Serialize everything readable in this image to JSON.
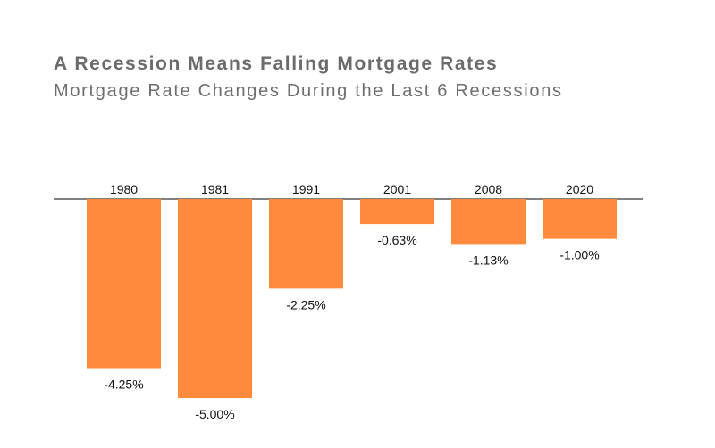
{
  "chart_data": {
    "type": "bar",
    "title": "A Recession Means Falling Mortgage Rates",
    "subtitle": "Mortgage Rate Changes During the Last 6 Recessions",
    "categories": [
      "1980",
      "1981",
      "1991",
      "2001",
      "2008",
      "2020"
    ],
    "values": [
      -4.25,
      -5.0,
      -2.25,
      -0.63,
      -1.13,
      -1.0
    ],
    "value_labels": [
      "-4.25%",
      "-5.00%",
      "-2.25%",
      "-0.63%",
      "-1.13%",
      "-1.00%"
    ],
    "xlabel": "",
    "ylabel": "",
    "ylim": [
      -5.0,
      0
    ],
    "category_axis_position": "top",
    "grid": false,
    "legend": "none",
    "colors": {
      "bar": "#FF8A3D",
      "title": "#6b6b6b",
      "axis": "#000000"
    }
  }
}
